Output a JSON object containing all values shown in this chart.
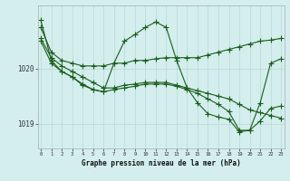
{
  "xlabel": "Graphe pression niveau de la mer (hPa)",
  "background_color": "#d4eeee",
  "grid_color": "#b8d8d8",
  "line_color": "#1a5c1a",
  "x_ticks": [
    0,
    1,
    2,
    3,
    4,
    5,
    6,
    7,
    8,
    9,
    10,
    11,
    12,
    13,
    14,
    15,
    16,
    17,
    18,
    19,
    20,
    21,
    22,
    23
  ],
  "y_ticks": [
    1019,
    1020
  ],
  "ylim": [
    1018.55,
    1021.15
  ],
  "xlim": [
    -0.3,
    23.3
  ],
  "series": [
    {
      "x": [
        0,
        1,
        2,
        3,
        4,
        5,
        6,
        7,
        8,
        9,
        10,
        11,
        12,
        13,
        14,
        15,
        16,
        17,
        18,
        19,
        20,
        21,
        22,
        23
      ],
      "y": [
        1020.75,
        1020.3,
        1020.15,
        1020.1,
        1020.05,
        1020.05,
        1020.05,
        1020.1,
        1020.1,
        1020.15,
        1020.15,
        1020.18,
        1020.2,
        1020.2,
        1020.2,
        1020.2,
        1020.25,
        1020.3,
        1020.35,
        1020.4,
        1020.45,
        1020.5,
        1020.52,
        1020.55
      ]
    },
    {
      "x": [
        0,
        1,
        2,
        3,
        4,
        5,
        6,
        7,
        8,
        9,
        10,
        11,
        12,
        13,
        14,
        15,
        16,
        17,
        18,
        19,
        20,
        21,
        22,
        23
      ],
      "y": [
        1020.55,
        1020.2,
        1020.05,
        1019.95,
        1019.85,
        1019.75,
        1019.65,
        1019.65,
        1019.7,
        1019.72,
        1019.75,
        1019.75,
        1019.75,
        1019.7,
        1019.65,
        1019.6,
        1019.55,
        1019.5,
        1019.45,
        1019.35,
        1019.25,
        1019.2,
        1019.15,
        1019.1
      ]
    },
    {
      "x": [
        0,
        1,
        2,
        3,
        4,
        5,
        6,
        7,
        8,
        9,
        10,
        11,
        12,
        13,
        14,
        15,
        16,
        17,
        18,
        19,
        20,
        21,
        22,
        23
      ],
      "y": [
        1020.5,
        1020.1,
        1019.95,
        1019.85,
        1019.7,
        1019.62,
        1019.58,
        1020.1,
        1020.5,
        1020.62,
        1020.75,
        1020.85,
        1020.75,
        1020.15,
        1019.65,
        1019.38,
        1019.18,
        1019.12,
        1019.08,
        1018.85,
        1018.88,
        1019.38,
        1020.1,
        1020.18
      ]
    },
    {
      "x": [
        0,
        1,
        2,
        3,
        4,
        5,
        6,
        7,
        8,
        9,
        10,
        11,
        12,
        13,
        14,
        15,
        16,
        17,
        18,
        19,
        20,
        21,
        22,
        23
      ],
      "y": [
        1020.88,
        1020.15,
        1019.95,
        1019.85,
        1019.72,
        1019.62,
        1019.58,
        1019.62,
        1019.65,
        1019.68,
        1019.72,
        1019.72,
        1019.72,
        1019.68,
        1019.62,
        1019.55,
        1019.45,
        1019.35,
        1019.22,
        1018.88,
        1018.88,
        1019.05,
        1019.28,
        1019.32
      ]
    }
  ],
  "marker": "+",
  "marker_size": 4.0,
  "line_width": 0.8
}
